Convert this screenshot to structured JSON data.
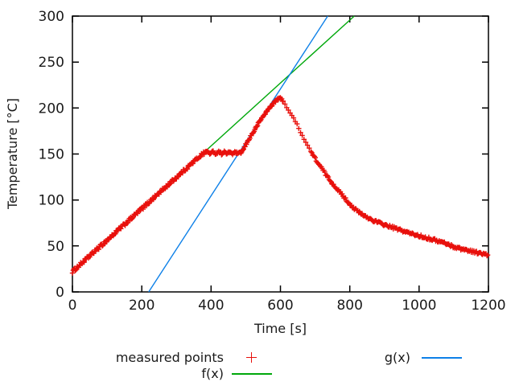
{
  "figure": {
    "background": "#ffffff",
    "axis_color": "#000000",
    "text_color": "#1a1a1a"
  },
  "chart_data": {
    "type": "scatter",
    "title": "",
    "xlabel": "Time [s]",
    "ylabel": "Temperature [°C]",
    "xlim": [
      0,
      1200
    ],
    "ylim": [
      0,
      300
    ],
    "xticks": [
      0,
      200,
      400,
      600,
      800,
      1000,
      1200
    ],
    "yticks": [
      0,
      50,
      100,
      150,
      200,
      250,
      300
    ],
    "grid": false,
    "legend_position": "below-plot, two columns",
    "series": [
      {
        "name": "measured points",
        "type": "points",
        "marker": "plus",
        "color": "#e8100c",
        "keypoints": [
          [
            0,
            22
          ],
          [
            40,
            35.7
          ],
          [
            80,
            49.4
          ],
          [
            120,
            63
          ],
          [
            160,
            76.7
          ],
          [
            200,
            90.4
          ],
          [
            240,
            104.1
          ],
          [
            280,
            117.8
          ],
          [
            320,
            131.4
          ],
          [
            350,
            141.7
          ],
          [
            370,
            148.5
          ],
          [
            383,
            152
          ],
          [
            390,
            152.8
          ],
          [
            398,
            150
          ],
          [
            406,
            153
          ],
          [
            414,
            150
          ],
          [
            422,
            153
          ],
          [
            430,
            150
          ],
          [
            438,
            152.5
          ],
          [
            446,
            150
          ],
          [
            454,
            152.5
          ],
          [
            462,
            150
          ],
          [
            470,
            152
          ],
          [
            478,
            150.3
          ],
          [
            486,
            151.5
          ],
          [
            492,
            154
          ],
          [
            500,
            160
          ],
          [
            512,
            168
          ],
          [
            524,
            175
          ],
          [
            536,
            183
          ],
          [
            548,
            190
          ],
          [
            560,
            196
          ],
          [
            572,
            202
          ],
          [
            582,
            206
          ],
          [
            590,
            209
          ],
          [
            597,
            210.8
          ],
          [
            604,
            209.5
          ],
          [
            610,
            206.5
          ],
          [
            618,
            201
          ],
          [
            626,
            196
          ],
          [
            634,
            191
          ],
          [
            642,
            186
          ],
          [
            650,
            181
          ],
          [
            658,
            174
          ],
          [
            666,
            168
          ],
          [
            674,
            162
          ],
          [
            682,
            157
          ],
          [
            692,
            150
          ],
          [
            702,
            144
          ],
          [
            712,
            138
          ],
          [
            722,
            133
          ],
          [
            732,
            127
          ],
          [
            742,
            122
          ],
          [
            752,
            117
          ],
          [
            762,
            113
          ],
          [
            772,
            108
          ],
          [
            782,
            104
          ],
          [
            792,
            99
          ],
          [
            802,
            95
          ],
          [
            812,
            91
          ],
          [
            822,
            88
          ],
          [
            832,
            85
          ],
          [
            845,
            82
          ],
          [
            858,
            79.5
          ],
          [
            872,
            77
          ],
          [
            886,
            75
          ],
          [
            900,
            73
          ],
          [
            920,
            70.5
          ],
          [
            940,
            68
          ],
          [
            960,
            65.5
          ],
          [
            980,
            63
          ],
          [
            1000,
            61
          ],
          [
            1025,
            58.5
          ],
          [
            1050,
            56
          ],
          [
            1075,
            53
          ],
          [
            1100,
            49
          ],
          [
            1125,
            46.5
          ],
          [
            1150,
            44.5
          ],
          [
            1175,
            42
          ],
          [
            1200,
            40
          ]
        ],
        "noise_ranges": [
          [
            0,
            385,
            1.8
          ],
          [
            385,
            490,
            1.1
          ],
          [
            490,
            612,
            1.2
          ],
          [
            612,
            688,
            0.7
          ],
          [
            688,
            1201,
            1.4
          ]
        ],
        "sampling_ranges": [
          [
            0,
            608,
            2
          ],
          [
            608,
            688,
            5
          ],
          [
            688,
            1201,
            2.5
          ]
        ]
      },
      {
        "name": "f(x)",
        "type": "line",
        "color": "#00a80b",
        "endpoints": [
          [
            0,
            22
          ],
          [
            812.9,
            300
          ]
        ]
      },
      {
        "name": "g(x)",
        "type": "line",
        "color": "#0d80e8",
        "endpoints": [
          [
            220,
            0
          ],
          [
            736.4,
            300
          ]
        ]
      }
    ]
  },
  "legend": {
    "measured_label": "measured points",
    "f_label": "f(x)",
    "g_label": "g(x)"
  }
}
